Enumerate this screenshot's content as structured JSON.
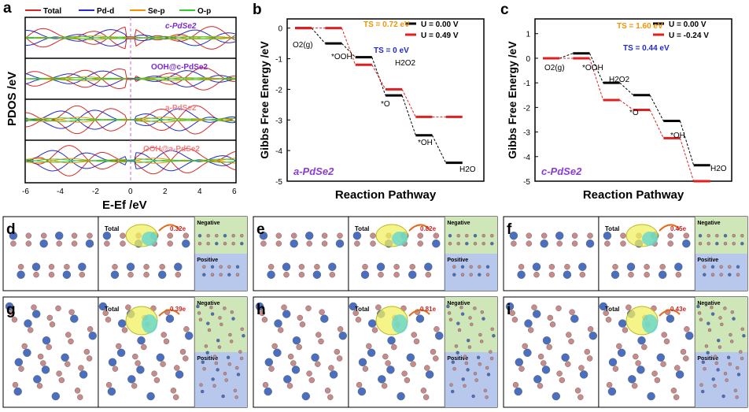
{
  "panel_labels": [
    "a",
    "b",
    "c",
    "d",
    "e",
    "f",
    "g",
    "h",
    "i"
  ],
  "panel_a": {
    "legend": [
      "Total",
      "Pd-d",
      "Se-p",
      "O-p"
    ],
    "legend_colors": [
      "#d62728",
      "#1f2bcc",
      "#f29400",
      "#2ecc2e"
    ],
    "subplots": [
      "c-PdSe2",
      "OOH@c-PdSe2",
      "a-PdSe2",
      "OOH@a-PdSe2"
    ],
    "subplot_colors": [
      "#7a2bcc",
      "#7a2bcc",
      "#f08080",
      "#f08080"
    ],
    "ylabel": "PDOS /eV",
    "xlabel": "E-Ef /eV",
    "xticks": [
      "-6",
      "-4",
      "-2",
      "0",
      "2",
      "4",
      "6"
    ]
  },
  "chart_data": [
    {
      "type": "line",
      "title": "a-PdSe2",
      "xlabel": "Reaction Pathway",
      "ylabel": "Gibbs Free Energy /eV",
      "ylim": [
        -5,
        0.3
      ],
      "yticks": [
        "0",
        "-1",
        "-2",
        "-3",
        "-4",
        "-5"
      ],
      "steps": [
        "O2(g)",
        "*OOH",
        "H2O2",
        "*O",
        "*OH",
        "H2O"
      ],
      "series": [
        {
          "name": "U = 0.00 V",
          "color": "#000000",
          "values": [
            0.0,
            -0.5,
            -0.95,
            -2.2,
            -3.5,
            -4.4
          ]
        },
        {
          "name": "U = 0.49 V",
          "color": "#e02020",
          "values": [
            0.0,
            0.0,
            -1.2,
            -2.0,
            -2.9,
            -2.9
          ]
        }
      ],
      "ts_labels": [
        {
          "text": "TS = 0.72 eV",
          "color": "#f29400"
        },
        {
          "text": "TS = 0 eV",
          "color": "#1f2bcc"
        }
      ]
    },
    {
      "type": "line",
      "title": "c-PdSe2",
      "xlabel": "Reaction Pathway",
      "ylabel": "Gibbs Free Energy /eV",
      "ylim": [
        -5,
        1.6
      ],
      "yticks": [
        "1",
        "0",
        "-1",
        "-2",
        "-3",
        "-4",
        "-5"
      ],
      "steps": [
        "O2(g)",
        "*OOH",
        "H2O2",
        "*O",
        "*OH",
        "H2O"
      ],
      "series": [
        {
          "name": "U = 0.00 V",
          "color": "#000000",
          "values": [
            0.0,
            0.2,
            -1.0,
            -1.5,
            -2.55,
            -4.35
          ]
        },
        {
          "name": "U = -0.24 V",
          "color": "#e02020",
          "values": [
            0.0,
            0.0,
            -1.7,
            -2.1,
            -3.25,
            -5.0
          ]
        }
      ],
      "ts_labels": [
        {
          "text": "TS = 1.60 eV",
          "color": "#f29400"
        },
        {
          "text": "TS = 0.44 eV",
          "color": "#1f2bcc"
        }
      ]
    }
  ],
  "charge_panels": [
    {
      "id": "d",
      "total": "Total",
      "charge": "0.32e",
      "negative": "Negative",
      "positive": "Positive"
    },
    {
      "id": "e",
      "total": "Total",
      "charge": "0.82e",
      "negative": "Negative",
      "positive": "Positive"
    },
    {
      "id": "f",
      "total": "Total",
      "charge": "0.45e",
      "negative": "Negative",
      "positive": "Positive"
    },
    {
      "id": "g",
      "total": "Total",
      "charge": "0.39e",
      "negative": "Negative",
      "positive": "Positive"
    },
    {
      "id": "h",
      "total": "Total",
      "charge": "0.81e",
      "negative": "Negative",
      "positive": "Positive"
    },
    {
      "id": "i",
      "total": "Total",
      "charge": "0.43e",
      "negative": "Negative",
      "positive": "Positive"
    }
  ]
}
